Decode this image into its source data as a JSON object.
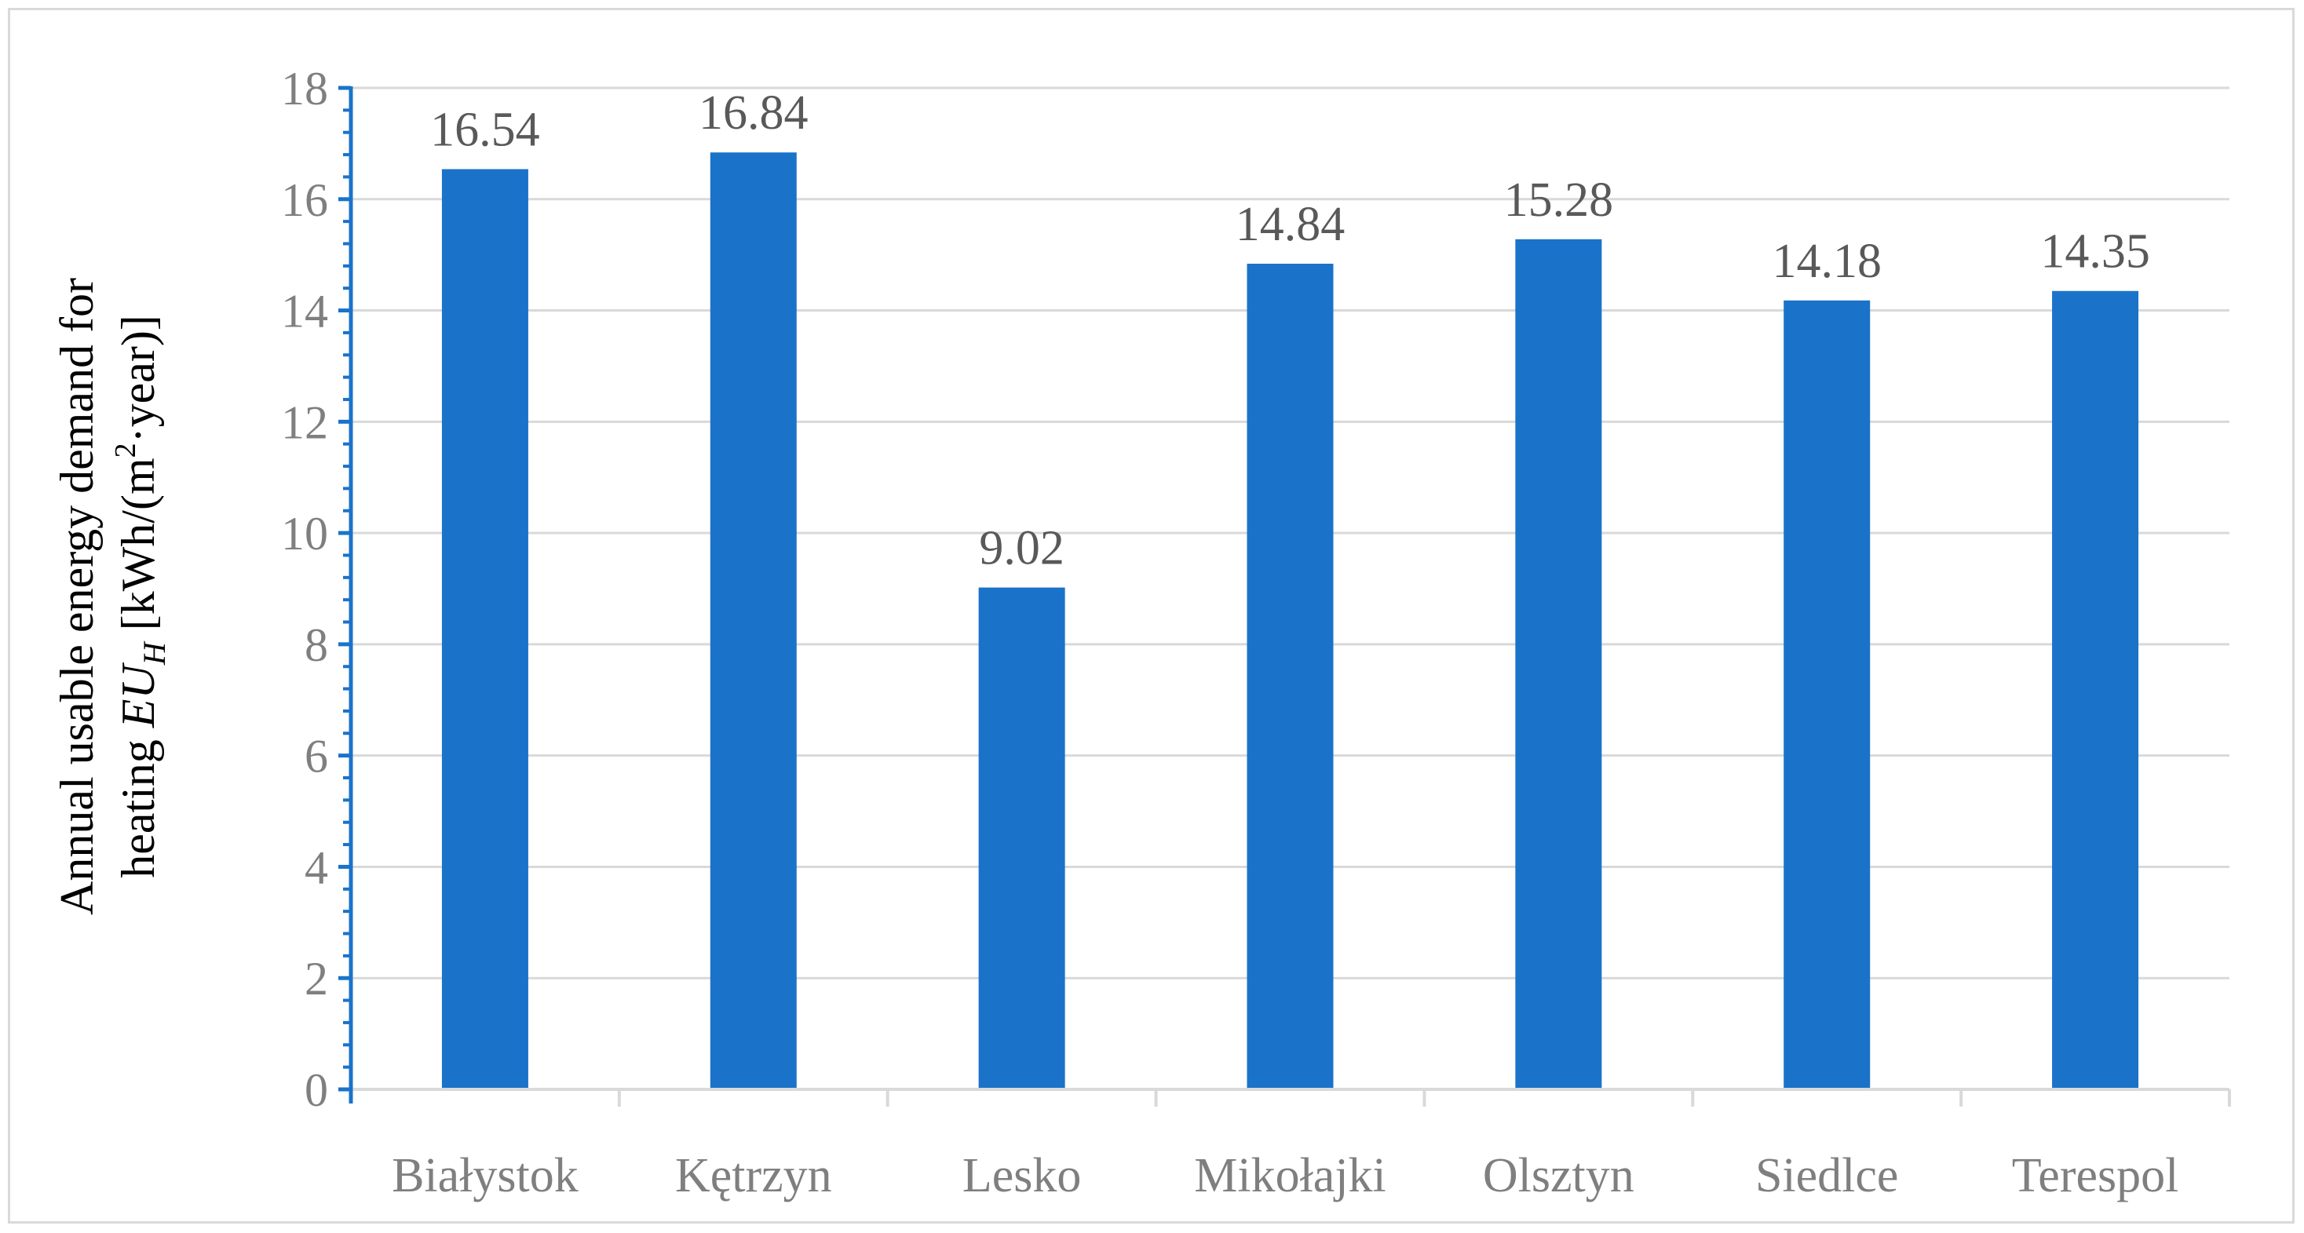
{
  "chart_data": {
    "type": "bar",
    "categories": [
      "Białystok",
      "Kętrzyn",
      "Lesko",
      "Mikołajki",
      "Olsztyn",
      "Siedlce",
      "Terespol"
    ],
    "values": [
      16.54,
      16.84,
      9.02,
      14.84,
      15.28,
      14.18,
      14.35
    ],
    "data_labels": [
      "16.54",
      "16.84",
      "9.02",
      "14.84",
      "15.28",
      "14.18",
      "14.35"
    ],
    "title": "",
    "xlabel": "",
    "ylabel_line1": "Annual usable energy demand for",
    "ylabel_line2_prefix": "heating ",
    "ylabel_symbol": "EU",
    "ylabel_subscript": "H",
    "ylabel_unit_prefix": " [kWh/(m",
    "ylabel_unit_sup": "2",
    "ylabel_unit_suffix": "·year)]",
    "ylim": [
      0,
      18
    ],
    "yticks": [
      "0",
      "2",
      "4",
      "6",
      "8",
      "10",
      "12",
      "14",
      "16",
      "18"
    ],
    "grid": true,
    "legend": "none",
    "bar_color": "#1a73c9",
    "axis_color": "#1a73c9",
    "grid_color": "#d9d9d9"
  }
}
